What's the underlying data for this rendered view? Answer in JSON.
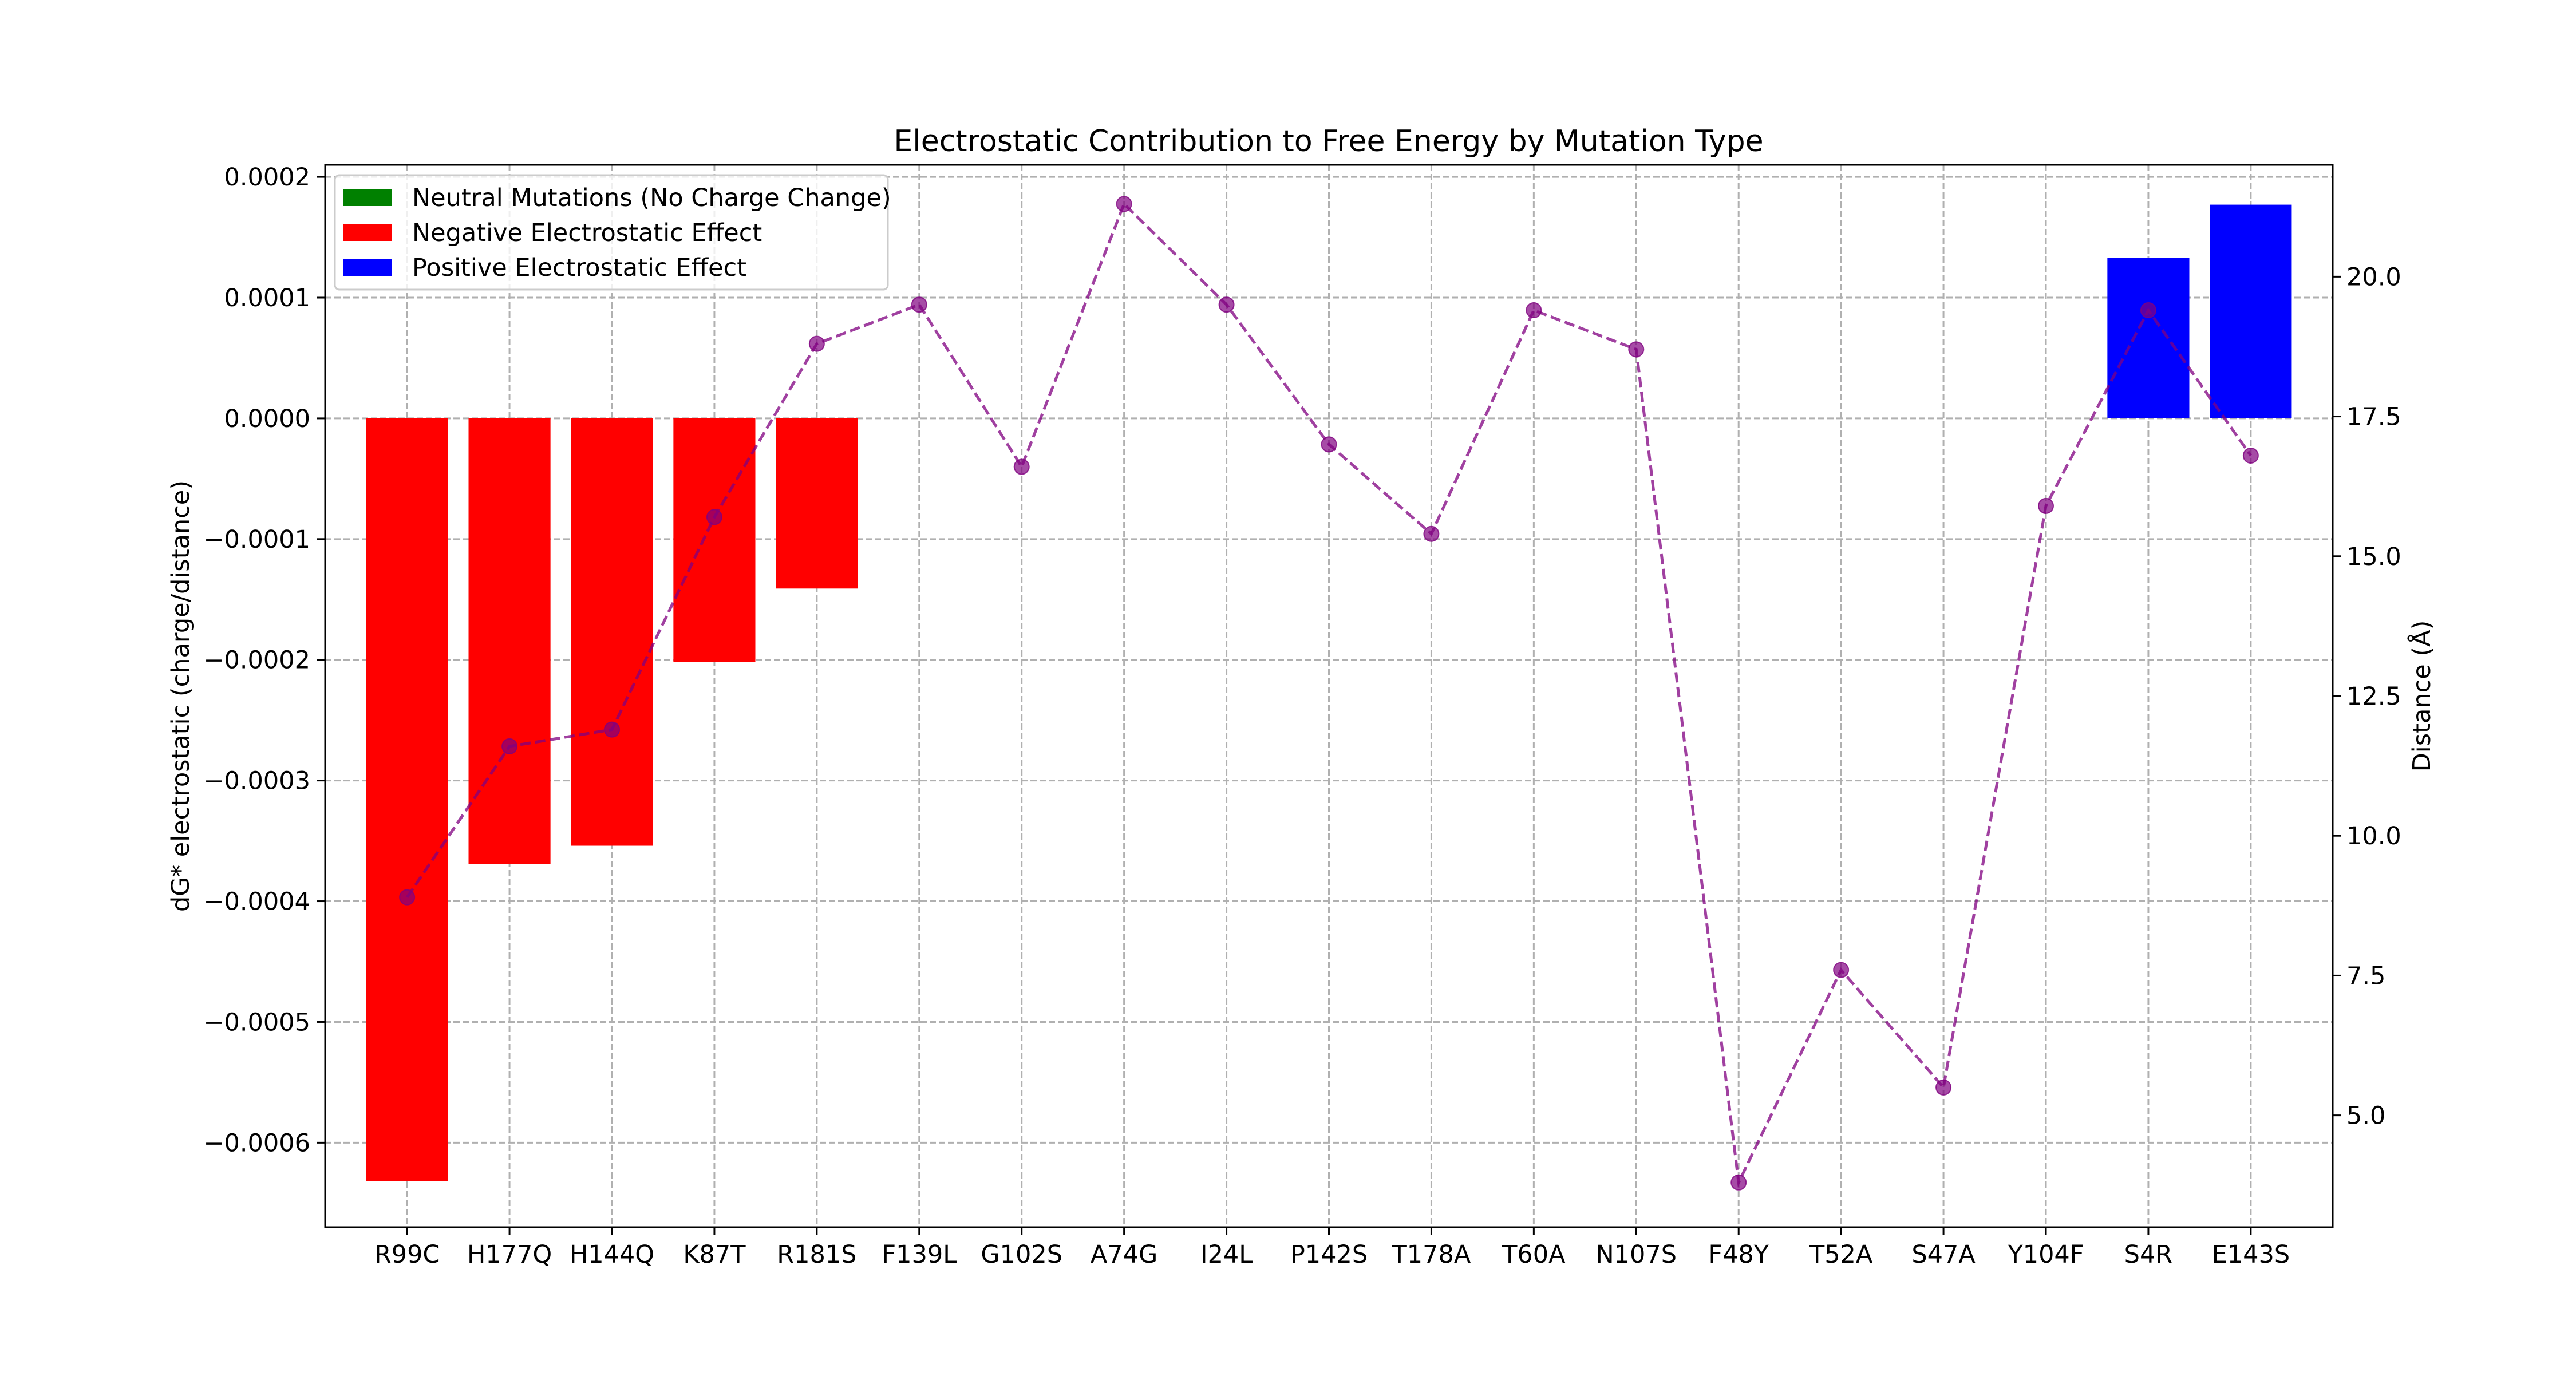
{
  "chart_data": {
    "type": "bar",
    "title": "Electrostatic Contribution to Free Energy by Mutation Type",
    "ylabel": "dG* electrostatic (charge/distance)",
    "y2label": "Distance (Å)",
    "categories": [
      "R99C",
      "H177Q",
      "H144Q",
      "K87T",
      "R181S",
      "F139L",
      "G102S",
      "A74G",
      "I24L",
      "P142S",
      "T178A",
      "T60A",
      "N107S",
      "F48Y",
      "T52A",
      "S47A",
      "Y104F",
      "S4R",
      "E143S"
    ],
    "ylim": [
      -0.00067,
      0.00021
    ],
    "yticks": [
      0.0002,
      0.0001,
      0.0,
      -0.0001,
      -0.0002,
      -0.0003,
      -0.0004,
      -0.0005,
      -0.0006
    ],
    "ytick_labels": [
      "0.0002",
      "0.0001",
      "0.0000",
      "−0.0001",
      "−0.0002",
      "−0.0003",
      "−0.0004",
      "−0.0005",
      "−0.0006"
    ],
    "y2lim": [
      3.0,
      22.0
    ],
    "y2ticks": [
      5.0,
      7.5,
      10.0,
      12.5,
      15.0,
      17.5,
      20.0
    ],
    "y2tick_labels": [
      "5.0",
      "7.5",
      "10.0",
      "12.5",
      "15.0",
      "17.5",
      "20.0"
    ],
    "grid": true,
    "legend_position": "upper-left",
    "legend": [
      {
        "label": "Neutral Mutations (No Charge Change)",
        "color": "#008000"
      },
      {
        "label": "Negative Electrostatic Effect",
        "color": "#ff0000"
      },
      {
        "label": "Positive Electrostatic Effect",
        "color": "#0000ff"
      }
    ],
    "bars": [
      {
        "category": "R99C",
        "value": -0.000632,
        "color": "#ff0000"
      },
      {
        "category": "H177Q",
        "value": -0.000369,
        "color": "#ff0000"
      },
      {
        "category": "H144Q",
        "value": -0.000354,
        "color": "#ff0000"
      },
      {
        "category": "K87T",
        "value": -0.000202,
        "color": "#ff0000"
      },
      {
        "category": "R181S",
        "value": -0.000141,
        "color": "#ff0000"
      },
      {
        "category": "S4R",
        "value": 0.000133,
        "color": "#0000ff"
      },
      {
        "category": "E143S",
        "value": 0.000177,
        "color": "#0000ff"
      }
    ],
    "distance_series": {
      "color": "#800080",
      "style": "dashed line with circle markers",
      "values": [
        8.9,
        11.6,
        11.9,
        15.7,
        18.8,
        19.5,
        16.6,
        21.3,
        19.5,
        17.0,
        15.4,
        19.4,
        18.7,
        3.8,
        7.6,
        5.5,
        15.9,
        19.4,
        16.8
      ]
    }
  }
}
